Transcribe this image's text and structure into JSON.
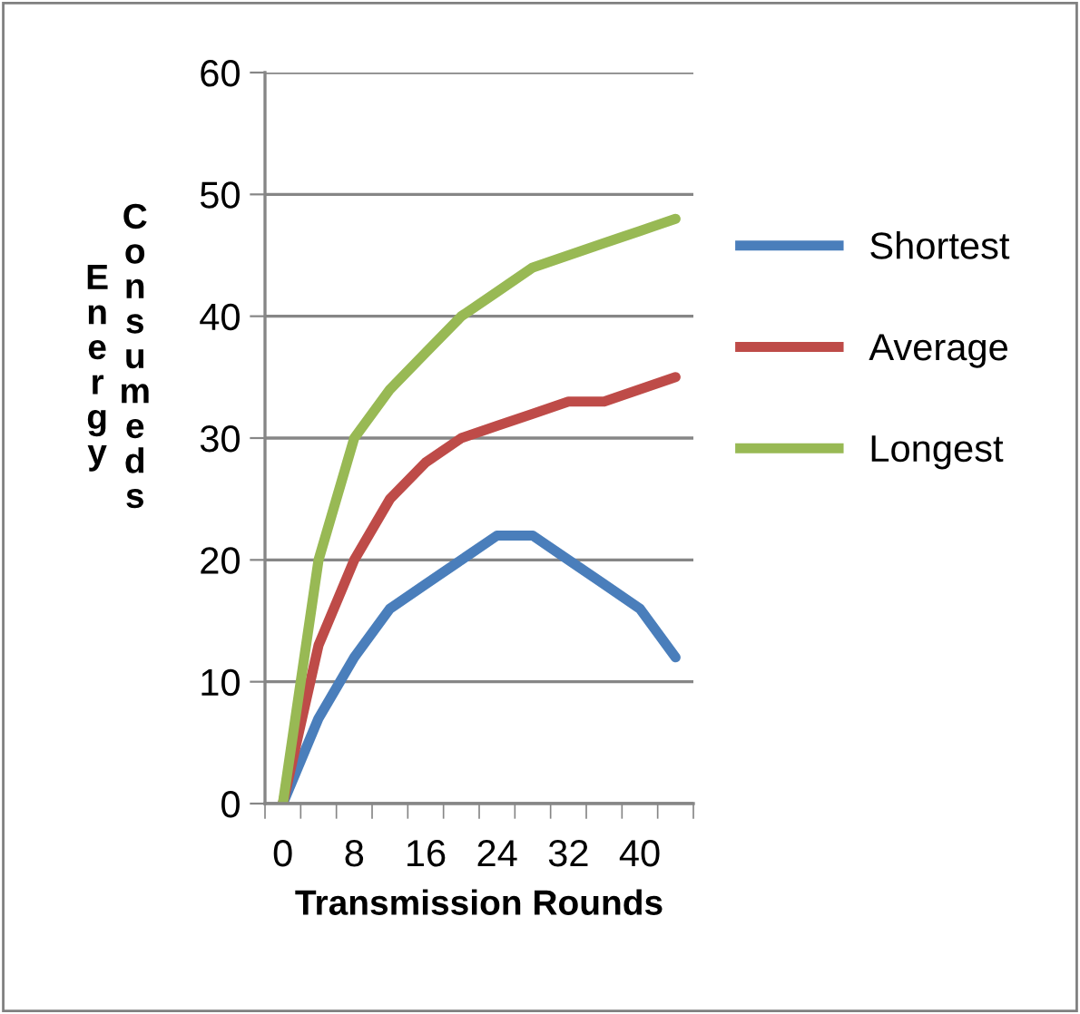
{
  "chart_data": {
    "type": "line",
    "xlabel": "Transmission Rounds",
    "ylabel": "Energy Consumeds",
    "categories": [
      "0",
      null,
      "8",
      null,
      "16",
      null,
      "24",
      null,
      "32",
      null,
      "40",
      null
    ],
    "series": [
      {
        "name": "Shortest",
        "color": "#4a7ebb",
        "values": [
          0,
          7,
          12,
          16,
          18,
          20,
          22,
          22,
          20,
          18,
          16,
          12
        ]
      },
      {
        "name": "Average",
        "color": "#be4b48",
        "values": [
          0,
          13,
          20,
          25,
          28,
          30,
          31,
          32,
          33,
          33,
          34,
          35
        ]
      },
      {
        "name": "Longest",
        "color": "#98b954",
        "values": [
          0,
          20,
          30,
          34,
          37,
          40,
          42,
          44,
          45,
          46,
          47,
          48
        ]
      }
    ],
    "ylim": [
      0,
      60
    ],
    "yticks": [
      0,
      10,
      20,
      30,
      40,
      50,
      60
    ],
    "grid": "y",
    "legend": "right",
    "marker": "none",
    "line_style": "solid"
  }
}
